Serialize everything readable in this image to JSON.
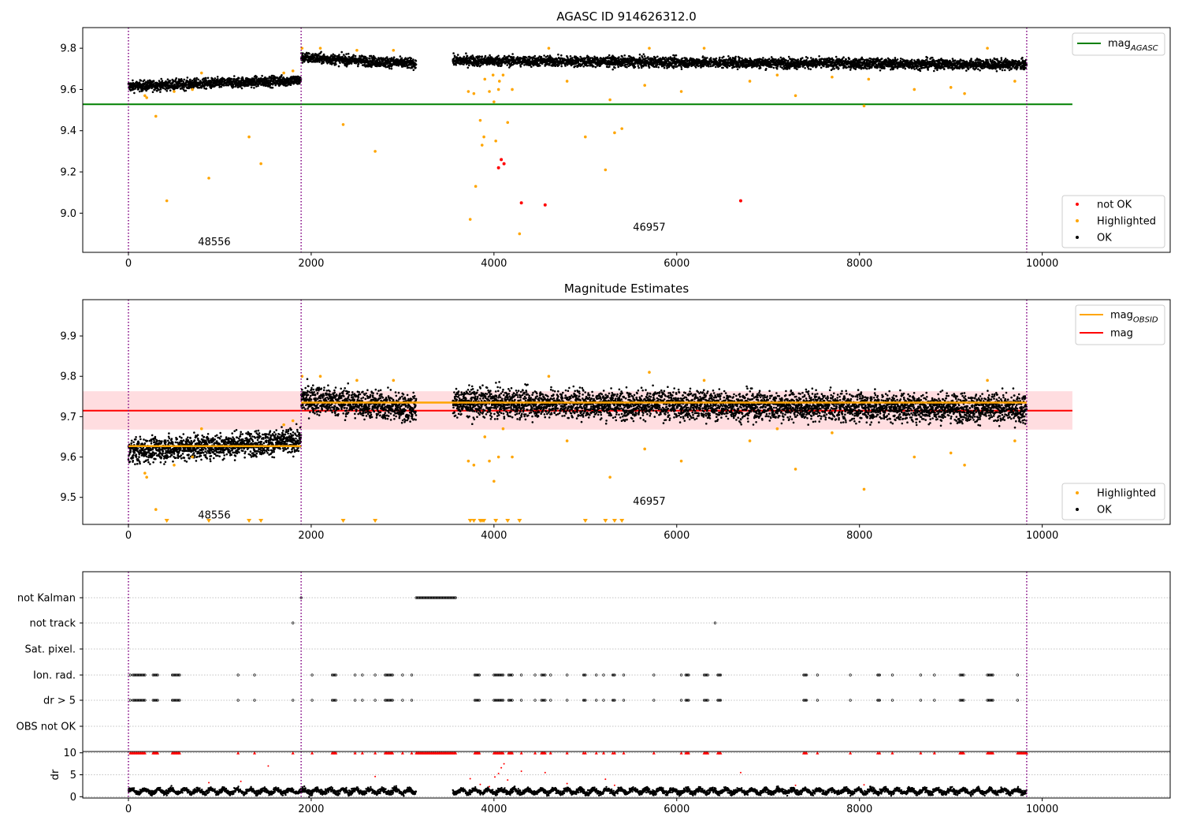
{
  "chart_data": [
    {
      "type": "scatter",
      "title": "AGASC ID 914626312.0",
      "xlabel": "",
      "ylabel": "",
      "xlim": [
        -500,
        11400
      ],
      "ylim": [
        8.81,
        9.9
      ],
      "x_ticks": [
        0,
        2000,
        4000,
        6000,
        8000,
        10000
      ],
      "y_ticks": [
        9.0,
        9.2,
        9.4,
        9.6,
        9.8
      ],
      "grid": false,
      "obsid_boundaries": [
        0,
        1890,
        9830
      ],
      "obsid_labels": [
        {
          "text": "48556",
          "x": 940,
          "y": 8.86
        },
        {
          "text": "46957",
          "x": 5700,
          "y": 8.93
        }
      ],
      "reference_line": {
        "name": "mag",
        "subscript": "AGASC",
        "value": 9.528,
        "x_range": [
          -500,
          10330
        ],
        "color": "#008000"
      },
      "legend_top": {
        "placement": "top-right",
        "entries": [
          {
            "label": "mag",
            "subscript": "AGASC",
            "color": "#008000"
          }
        ]
      },
      "legend_bottom": {
        "placement": "bottom-right",
        "entries": [
          {
            "label": "not OK",
            "color": "#ff0000"
          },
          {
            "label": "Highlighted",
            "color": "#ffa500"
          },
          {
            "label": "OK",
            "color": "#000000"
          }
        ]
      },
      "ok_segments": [
        {
          "x0": 0,
          "x1": 1890,
          "y0": 9.615,
          "y1": 9.645,
          "spread": 0.025
        },
        {
          "x0": 1890,
          "x1": 3150,
          "y0": 9.755,
          "y1": 9.725,
          "spread": 0.025
        },
        {
          "x0": 3550,
          "x1": 9830,
          "y0": 9.74,
          "y1": 9.72,
          "spread": 0.025
        }
      ],
      "not_ok_points": [
        [
          4050,
          9.22
        ],
        [
          4080,
          9.26
        ],
        [
          4110,
          9.24
        ],
        [
          4300,
          9.05
        ],
        [
          4560,
          9.04
        ],
        [
          6700,
          9.06
        ]
      ],
      "highlighted_points": [
        [
          180,
          9.57
        ],
        [
          200,
          9.56
        ],
        [
          300,
          9.47
        ],
        [
          420,
          9.06
        ],
        [
          500,
          9.59
        ],
        [
          700,
          9.6
        ],
        [
          800,
          9.68
        ],
        [
          880,
          9.17
        ],
        [
          1320,
          9.37
        ],
        [
          1450,
          9.24
        ],
        [
          1700,
          9.68
        ],
        [
          1800,
          9.69
        ],
        [
          1900,
          9.8
        ],
        [
          2100,
          9.8
        ],
        [
          2350,
          9.43
        ],
        [
          2500,
          9.79
        ],
        [
          2700,
          9.3
        ],
        [
          2900,
          9.79
        ],
        [
          3720,
          9.59
        ],
        [
          3740,
          8.97
        ],
        [
          3780,
          9.58
        ],
        [
          3800,
          9.13
        ],
        [
          3850,
          9.45
        ],
        [
          3870,
          9.33
        ],
        [
          3890,
          9.37
        ],
        [
          3900,
          9.65
        ],
        [
          3950,
          9.59
        ],
        [
          3990,
          9.67
        ],
        [
          4000,
          9.54
        ],
        [
          4020,
          9.35
        ],
        [
          4050,
          9.6
        ],
        [
          4060,
          9.64
        ],
        [
          4100,
          9.67
        ],
        [
          4150,
          9.44
        ],
        [
          4200,
          9.6
        ],
        [
          4280,
          8.9
        ],
        [
          4600,
          9.8
        ],
        [
          4800,
          9.64
        ],
        [
          5000,
          9.37
        ],
        [
          5220,
          9.21
        ],
        [
          5270,
          9.55
        ],
        [
          5320,
          9.39
        ],
        [
          5400,
          9.41
        ],
        [
          5650,
          9.62
        ],
        [
          5700,
          9.8
        ],
        [
          6050,
          9.59
        ],
        [
          6300,
          9.8
        ],
        [
          6800,
          9.64
        ],
        [
          7100,
          9.67
        ],
        [
          7300,
          9.57
        ],
        [
          7700,
          9.66
        ],
        [
          8050,
          9.52
        ],
        [
          8100,
          9.65
        ],
        [
          8600,
          9.6
        ],
        [
          9000,
          9.61
        ],
        [
          9150,
          9.58
        ],
        [
          9400,
          9.8
        ],
        [
          9700,
          9.64
        ]
      ]
    },
    {
      "type": "scatter",
      "title": "Magnitude Estimates",
      "xlabel": "",
      "ylabel": "",
      "xlim": [
        -500,
        11400
      ],
      "ylim": [
        9.433,
        9.99
      ],
      "x_ticks": [
        0,
        2000,
        4000,
        6000,
        8000,
        10000
      ],
      "y_ticks": [
        9.5,
        9.6,
        9.7,
        9.8,
        9.9
      ],
      "grid": false,
      "obsid_boundaries": [
        0,
        1890,
        9830
      ],
      "obsid_labels": [
        {
          "text": "48556",
          "x": 940,
          "y": 9.455
        },
        {
          "text": "46957",
          "x": 5700,
          "y": 9.49
        }
      ],
      "mag_line": {
        "name": "mag",
        "value": 9.715,
        "x_range": [
          -500,
          10330
        ],
        "color": "#ff0000",
        "band": [
          9.668,
          9.763
        ],
        "band_color": "#ffdde0"
      },
      "obsid_means": [
        {
          "x0": 0,
          "x1": 1890,
          "value": 9.627
        },
        {
          "x0": 1890,
          "x1": 9830,
          "value": 9.735
        }
      ],
      "legend_top": {
        "placement": "top-right",
        "entries": [
          {
            "label": "mag",
            "subscript": "OBSID",
            "color": "#ffa500"
          },
          {
            "label": "mag",
            "subscript": "",
            "color": "#ff0000"
          }
        ]
      },
      "legend_bottom": {
        "placement": "bottom-right",
        "entries": [
          {
            "label": "Highlighted",
            "color": "#ffa500"
          },
          {
            "label": "OK",
            "color": "#000000"
          }
        ]
      },
      "ok_segments": [
        {
          "x0": 0,
          "x1": 1890,
          "y0": 9.615,
          "y1": 9.64,
          "spread": 0.03
        },
        {
          "x0": 1890,
          "x1": 3150,
          "y0": 9.745,
          "y1": 9.72,
          "spread": 0.035
        },
        {
          "x0": 3550,
          "x1": 9830,
          "y0": 9.735,
          "y1": 9.72,
          "spread": 0.035
        }
      ],
      "highlighted_points": [
        [
          180,
          9.56
        ],
        [
          200,
          9.55
        ],
        [
          300,
          9.47
        ],
        [
          500,
          9.58
        ],
        [
          700,
          9.6
        ],
        [
          800,
          9.67
        ],
        [
          1700,
          9.68
        ],
        [
          1800,
          9.69
        ],
        [
          1900,
          9.8
        ],
        [
          2100,
          9.8
        ],
        [
          2500,
          9.79
        ],
        [
          2900,
          9.79
        ],
        [
          3720,
          9.59
        ],
        [
          3780,
          9.58
        ],
        [
          3900,
          9.65
        ],
        [
          3950,
          9.59
        ],
        [
          4000,
          9.54
        ],
        [
          4050,
          9.6
        ],
        [
          4100,
          9.67
        ],
        [
          4200,
          9.6
        ],
        [
          4600,
          9.8
        ],
        [
          4800,
          9.64
        ],
        [
          5270,
          9.55
        ],
        [
          5650,
          9.62
        ],
        [
          5700,
          9.81
        ],
        [
          6050,
          9.59
        ],
        [
          6300,
          9.79
        ],
        [
          6800,
          9.64
        ],
        [
          7100,
          9.67
        ],
        [
          7300,
          9.57
        ],
        [
          7700,
          9.66
        ],
        [
          8050,
          9.52
        ],
        [
          8600,
          9.6
        ],
        [
          9000,
          9.61
        ],
        [
          9150,
          9.58
        ],
        [
          9400,
          9.79
        ],
        [
          9700,
          9.64
        ]
      ],
      "below_range_markers_x": [
        420,
        880,
        1320,
        1450,
        2350,
        2700,
        3740,
        3780,
        3850,
        3870,
        3890,
        4020,
        4150,
        4280,
        5000,
        5220,
        5320,
        5400
      ]
    },
    {
      "type": "scatter",
      "title": "",
      "xlabel": "",
      "ylabel": "",
      "xlim": [
        -500,
        11400
      ],
      "x_ticks": [
        0,
        2000,
        4000,
        6000,
        8000,
        10000
      ],
      "grid": true,
      "obsid_boundaries": [
        0,
        1890,
        9830
      ],
      "flag_rows": [
        "not Kalman",
        "not track",
        "Sat. pixel.",
        "Ion. rad.",
        "dr > 5",
        "OBS not OK"
      ],
      "flags": {
        "not Kalman": [
          [
            3150,
            3580
          ],
          [
            1890,
            1890
          ]
        ],
        "not track": [
          [
            1800,
            1800
          ],
          [
            6420,
            6420
          ]
        ],
        "Sat. pixel.": [],
        "Ion. rad.": [
          [
            20,
            20
          ],
          [
            50,
            180
          ],
          [
            270,
            320
          ],
          [
            480,
            560
          ],
          [
            1200,
            1200
          ],
          [
            1380,
            1380
          ],
          [
            2010,
            2010
          ],
          [
            2230,
            2270
          ],
          [
            2480,
            2480
          ],
          [
            2560,
            2560
          ],
          [
            2700,
            2700
          ],
          [
            2810,
            2890
          ],
          [
            3000,
            3000
          ],
          [
            3100,
            3100
          ],
          [
            3790,
            3840
          ],
          [
            4000,
            4100
          ],
          [
            4160,
            4200
          ],
          [
            4300,
            4300
          ],
          [
            4450,
            4450
          ],
          [
            4520,
            4560
          ],
          [
            4620,
            4620
          ],
          [
            4800,
            4800
          ],
          [
            4980,
            5000
          ],
          [
            5120,
            5120
          ],
          [
            5200,
            5200
          ],
          [
            5300,
            5320
          ],
          [
            5420,
            5420
          ],
          [
            5750,
            5750
          ],
          [
            6050,
            6050
          ],
          [
            6100,
            6130
          ],
          [
            6300,
            6340
          ],
          [
            6450,
            6480
          ],
          [
            7390,
            7420
          ],
          [
            7540,
            7540
          ],
          [
            7900,
            7900
          ],
          [
            8200,
            8220
          ],
          [
            8360,
            8360
          ],
          [
            8670,
            8670
          ],
          [
            8820,
            8820
          ],
          [
            9100,
            9140
          ],
          [
            9400,
            9460
          ],
          [
            9730,
            9730
          ]
        ],
        "dr > 5": [
          [
            20,
            20
          ],
          [
            50,
            180
          ],
          [
            270,
            320
          ],
          [
            480,
            560
          ],
          [
            1200,
            1200
          ],
          [
            1380,
            1380
          ],
          [
            1800,
            1800
          ],
          [
            2010,
            2010
          ],
          [
            2230,
            2270
          ],
          [
            2480,
            2480
          ],
          [
            2560,
            2560
          ],
          [
            2700,
            2700
          ],
          [
            2810,
            2890
          ],
          [
            3000,
            3000
          ],
          [
            3100,
            3100
          ],
          [
            3790,
            3840
          ],
          [
            4000,
            4100
          ],
          [
            4160,
            4200
          ],
          [
            4300,
            4300
          ],
          [
            4450,
            4450
          ],
          [
            4520,
            4560
          ],
          [
            4620,
            4620
          ],
          [
            4800,
            4800
          ],
          [
            4980,
            5000
          ],
          [
            5120,
            5120
          ],
          [
            5200,
            5200
          ],
          [
            5300,
            5320
          ],
          [
            5420,
            5420
          ],
          [
            5750,
            5750
          ],
          [
            6050,
            6050
          ],
          [
            6100,
            6130
          ],
          [
            6300,
            6340
          ],
          [
            6450,
            6480
          ],
          [
            7390,
            7420
          ],
          [
            7540,
            7540
          ],
          [
            7900,
            7900
          ],
          [
            8200,
            8220
          ],
          [
            8360,
            8360
          ],
          [
            8670,
            8670
          ],
          [
            8820,
            8820
          ],
          [
            9100,
            9140
          ],
          [
            9400,
            9460
          ],
          [
            9730,
            9730
          ]
        ],
        "OBS not OK": []
      }
    },
    {
      "type": "scatter",
      "title": "",
      "xlabel": "",
      "ylabel": "dr",
      "xlim": [
        -500,
        11400
      ],
      "ylim": [
        -0.3,
        10.3
      ],
      "y_ticks": [
        0,
        5,
        10
      ],
      "x_ticks": [
        0,
        2000,
        4000,
        6000,
        8000,
        10000
      ],
      "grid": true,
      "ok_segments": [
        [
          0,
          3150
        ],
        [
          3550,
          9830
        ]
      ],
      "ok_dr_range": [
        0.3,
        2.2
      ],
      "clipped_markers_x_ranges": [
        [
          20,
          180
        ],
        [
          270,
          320
        ],
        [
          480,
          560
        ],
        [
          1200,
          1200
        ],
        [
          1380,
          1380
        ],
        [
          1800,
          1800
        ],
        [
          2010,
          2010
        ],
        [
          2230,
          2270
        ],
        [
          2480,
          2480
        ],
        [
          2560,
          2560
        ],
        [
          2700,
          2700
        ],
        [
          2810,
          2890
        ],
        [
          3000,
          3000
        ],
        [
          3100,
          3100
        ],
        [
          3150,
          3580
        ],
        [
          3790,
          3840
        ],
        [
          4000,
          4100
        ],
        [
          4160,
          4200
        ],
        [
          4300,
          4300
        ],
        [
          4450,
          4450
        ],
        [
          4520,
          4560
        ],
        [
          4620,
          4620
        ],
        [
          4800,
          4800
        ],
        [
          4980,
          5000
        ],
        [
          5120,
          5120
        ],
        [
          5200,
          5200
        ],
        [
          5300,
          5320
        ],
        [
          5420,
          5420
        ],
        [
          5750,
          5750
        ],
        [
          6050,
          6050
        ],
        [
          6100,
          6130
        ],
        [
          6300,
          6340
        ],
        [
          6450,
          6480
        ],
        [
          7390,
          7420
        ],
        [
          7540,
          7540
        ],
        [
          7900,
          7900
        ],
        [
          8200,
          8220
        ],
        [
          8360,
          8360
        ],
        [
          8670,
          8670
        ],
        [
          8820,
          8820
        ],
        [
          9100,
          9140
        ],
        [
          9400,
          9460
        ],
        [
          9730,
          9830
        ]
      ],
      "red_points": [
        [
          880,
          3.2
        ],
        [
          1230,
          3.5
        ],
        [
          1530,
          7.0
        ],
        [
          2700,
          4.6
        ],
        [
          3740,
          4.1
        ],
        [
          3850,
          2.8
        ],
        [
          3950,
          2.3
        ],
        [
          4010,
          4.5
        ],
        [
          4050,
          5.3
        ],
        [
          4080,
          6.6
        ],
        [
          4110,
          7.5
        ],
        [
          4150,
          3.8
        ],
        [
          4300,
          5.8
        ],
        [
          4560,
          5.5
        ],
        [
          4800,
          3.0
        ],
        [
          5220,
          4.0
        ],
        [
          5320,
          2.6
        ],
        [
          6700,
          5.5
        ],
        [
          7300,
          2.6
        ],
        [
          8050,
          2.7
        ]
      ]
    }
  ]
}
